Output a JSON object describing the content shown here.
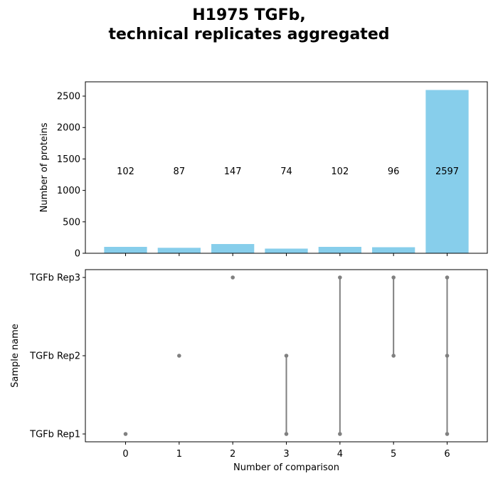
{
  "title_lines": [
    "H1975 TGFb,",
    "technical replicates aggregated"
  ],
  "colors": {
    "bar": "#87ceeb",
    "dot": "#808080",
    "line": "#808080",
    "axis": "#000000"
  },
  "chart_data": [
    {
      "type": "bar",
      "title": "",
      "xlabel": "",
      "ylabel": "Number of proteins",
      "categories": [
        0,
        1,
        2,
        3,
        4,
        5,
        6
      ],
      "values": [
        102,
        87,
        147,
        74,
        102,
        96,
        2597
      ],
      "bar_labels": [
        "102",
        "87",
        "147",
        "74",
        "102",
        "96",
        "2597"
      ],
      "bar_label_y_value": 1300,
      "ylim": [
        0,
        2727
      ],
      "yticks": [
        0,
        500,
        1000,
        1500,
        2000,
        2500
      ],
      "xlim": [
        -0.75,
        6.75
      ],
      "grid": false
    },
    {
      "type": "scatter",
      "title": "",
      "xlabel": "Number of comparison",
      "ylabel": "Sample name",
      "xticks": [
        0,
        1,
        2,
        3,
        4,
        5,
        6
      ],
      "xlim": [
        -0.75,
        6.75
      ],
      "y_categories": [
        "TGFb Rep1",
        "TGFb Rep2",
        "TGFb Rep3"
      ],
      "points": [
        {
          "x": 0,
          "members": [
            "TGFb Rep1"
          ]
        },
        {
          "x": 1,
          "members": [
            "TGFb Rep2"
          ]
        },
        {
          "x": 2,
          "members": [
            "TGFb Rep3"
          ]
        },
        {
          "x": 3,
          "members": [
            "TGFb Rep1",
            "TGFb Rep2"
          ]
        },
        {
          "x": 4,
          "members": [
            "TGFb Rep1",
            "TGFb Rep3"
          ]
        },
        {
          "x": 5,
          "members": [
            "TGFb Rep2",
            "TGFb Rep3"
          ]
        },
        {
          "x": 6,
          "members": [
            "TGFb Rep1",
            "TGFb Rep2",
            "TGFb Rep3"
          ]
        }
      ],
      "grid": false
    }
  ]
}
